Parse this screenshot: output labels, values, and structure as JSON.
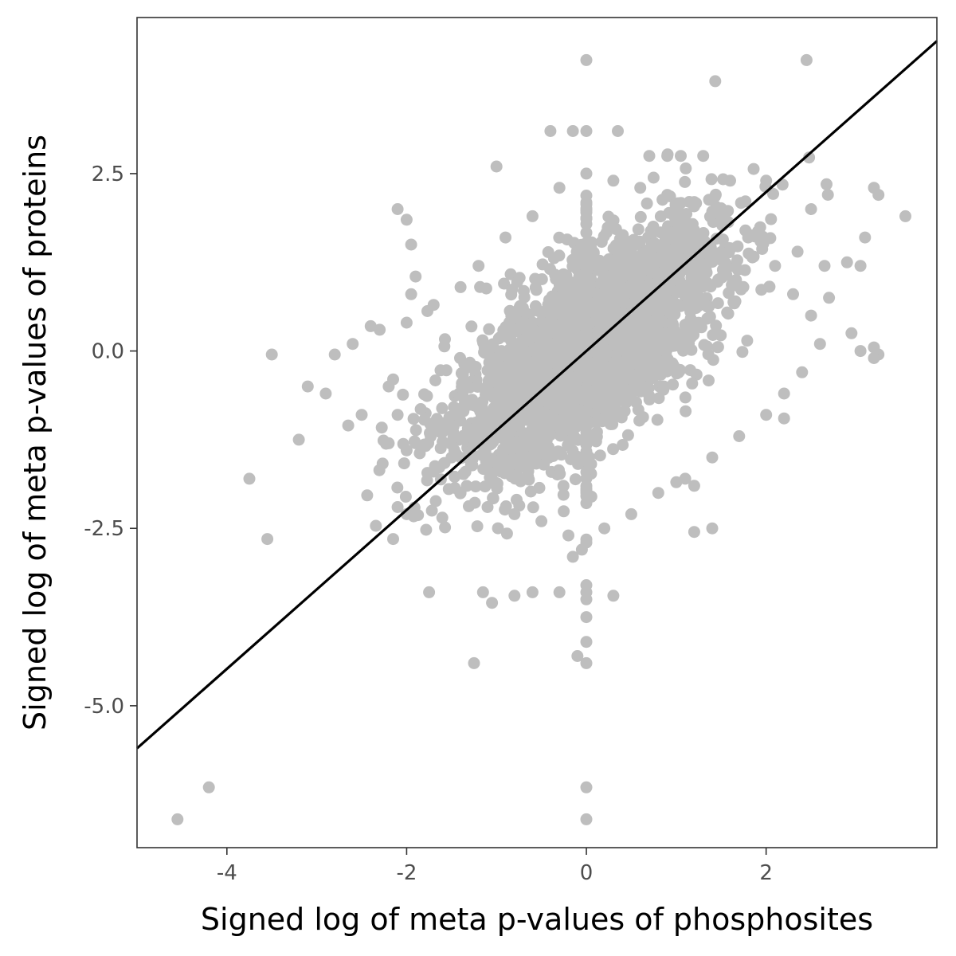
{
  "chart_data": {
    "type": "scatter",
    "title": "",
    "xlabel": "Signed log of meta p-values of phosphosites",
    "ylabel": "Signed log of meta p-values of proteins",
    "xlim": [
      -5.0,
      3.9
    ],
    "ylim": [
      -7.0,
      4.7
    ],
    "x_ticks": [
      -4,
      -2,
      0,
      2
    ],
    "x_tick_labels": [
      "-4",
      "-2",
      "0",
      "2"
    ],
    "y_ticks": [
      2.5,
      0.0,
      -2.5,
      -5.0
    ],
    "y_tick_labels": [
      "2.5",
      "0.0",
      "-2.5",
      "-5.0"
    ],
    "grid": false,
    "legend": "none",
    "point_color": "#bebebe",
    "line_color": "#000000",
    "reference_line": {
      "slope": 1.12,
      "intercept": 0.0
    },
    "series": [
      {
        "points": [
          [
            0.0,
            4.1
          ],
          [
            2.45,
            4.1
          ],
          [
            0.0,
            3.1
          ],
          [
            -0.4,
            3.1
          ],
          [
            0.35,
            3.1
          ],
          [
            -1.0,
            2.6
          ],
          [
            3.2,
            2.3
          ],
          [
            3.25,
            2.2
          ],
          [
            3.55,
            1.9
          ],
          [
            3.1,
            1.6
          ],
          [
            -2.1,
            2.0
          ],
          [
            -2.0,
            1.85
          ],
          [
            -1.95,
            1.5
          ],
          [
            -1.9,
            1.05
          ],
          [
            -1.95,
            0.8
          ],
          [
            2.5,
            2.0
          ],
          [
            2.35,
            1.4
          ],
          [
            2.65,
            1.2
          ],
          [
            2.9,
            1.25
          ],
          [
            3.05,
            1.2
          ],
          [
            2.7,
            0.75
          ],
          [
            2.95,
            0.25
          ],
          [
            3.2,
            0.05
          ],
          [
            3.25,
            -0.05
          ],
          [
            3.2,
            -0.1
          ],
          [
            3.05,
            0.0
          ],
          [
            2.2,
            -0.95
          ],
          [
            -3.5,
            -0.05
          ],
          [
            -3.1,
            -0.5
          ],
          [
            -2.9,
            -0.6
          ],
          [
            -3.2,
            -1.25
          ],
          [
            -3.75,
            -1.8
          ],
          [
            -3.55,
            -2.65
          ],
          [
            -2.15,
            -2.65
          ],
          [
            -1.75,
            -3.4
          ],
          [
            -1.25,
            -4.4
          ],
          [
            -4.55,
            -6.6
          ],
          [
            -4.2,
            -6.15
          ],
          [
            0.0,
            -6.15
          ],
          [
            0.0,
            -6.6
          ],
          [
            0.0,
            -4.4
          ],
          [
            0.0,
            -4.1
          ],
          [
            -0.1,
            -4.3
          ],
          [
            0.0,
            -3.75
          ],
          [
            0.0,
            -3.5
          ],
          [
            0.0,
            -3.4
          ],
          [
            -0.3,
            -3.4
          ],
          [
            -0.6,
            -3.4
          ],
          [
            -0.8,
            -3.45
          ],
          [
            -1.15,
            -3.4
          ],
          [
            -1.05,
            -3.55
          ],
          [
            0.0,
            -3.3
          ],
          [
            0.3,
            -3.45
          ],
          [
            -0.15,
            -2.9
          ],
          [
            -0.05,
            -2.8
          ],
          [
            0.0,
            -2.7
          ],
          [
            1.2,
            -2.55
          ],
          [
            1.4,
            -2.5
          ],
          [
            -2.1,
            -2.2
          ],
          [
            -2.0,
            -2.3
          ],
          [
            1.2,
            -1.9
          ],
          [
            1.0,
            -1.85
          ],
          [
            2.0,
            2.4
          ],
          [
            1.6,
            2.4
          ],
          [
            0.7,
            2.75
          ],
          [
            0.9,
            2.75
          ],
          [
            1.05,
            2.75
          ],
          [
            1.3,
            2.75
          ],
          [
            -0.15,
            3.1
          ],
          [
            -1.5,
            -1.5
          ],
          [
            -2.65,
            -1.05
          ],
          [
            -2.5,
            -0.9
          ],
          [
            -2.2,
            -1.3
          ],
          [
            -2.0,
            -1.4
          ],
          [
            -2.4,
            0.35
          ],
          [
            -2.6,
            0.1
          ],
          [
            -2.8,
            -0.05
          ],
          [
            -2.3,
            0.3
          ],
          [
            -2.15,
            -0.4
          ],
          [
            -2.0,
            0.4
          ],
          [
            -1.7,
            0.65
          ],
          [
            -1.4,
            0.9
          ],
          [
            -1.2,
            1.2
          ],
          [
            -0.9,
            1.6
          ],
          [
            -0.6,
            1.9
          ],
          [
            -0.3,
            2.3
          ],
          [
            0.0,
            2.5
          ],
          [
            0.3,
            2.4
          ],
          [
            0.6,
            2.3
          ],
          [
            0.9,
            2.2
          ],
          [
            1.2,
            2.1
          ],
          [
            1.5,
            1.9
          ],
          [
            1.8,
            1.6
          ],
          [
            2.1,
            1.2
          ],
          [
            2.3,
            0.8
          ],
          [
            2.5,
            0.5
          ],
          [
            2.6,
            0.1
          ],
          [
            2.4,
            -0.3
          ],
          [
            2.2,
            -0.6
          ],
          [
            2.0,
            -0.9
          ],
          [
            1.7,
            -1.2
          ],
          [
            1.4,
            -1.5
          ],
          [
            1.1,
            -1.8
          ],
          [
            0.8,
            -2.0
          ],
          [
            0.5,
            -2.3
          ],
          [
            0.2,
            -2.5
          ],
          [
            -0.2,
            -2.6
          ],
          [
            -0.5,
            -2.4
          ],
          [
            -0.8,
            -2.3
          ],
          [
            -1.1,
            -2.2
          ],
          [
            -1.4,
            -2.0
          ],
          [
            -1.7,
            -1.7
          ],
          [
            -1.9,
            -1.3
          ],
          [
            -2.1,
            -0.9
          ],
          [
            -2.2,
            -0.5
          ]
        ]
      }
    ]
  }
}
